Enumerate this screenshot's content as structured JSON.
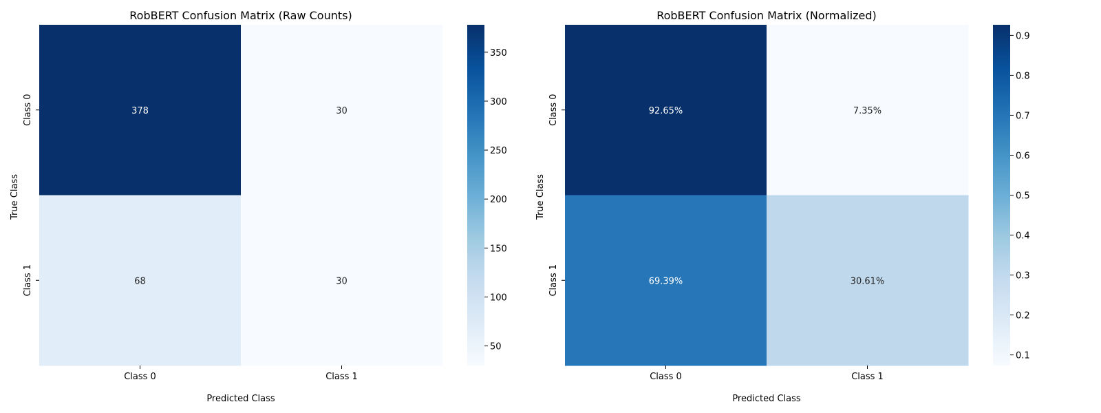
{
  "chart_data": [
    {
      "type": "heatmap",
      "title": "RobBERT Confusion Matrix (Raw Counts)",
      "xlabel": "Predicted Class",
      "ylabel": "True Class",
      "x_categories": [
        "Class 0",
        "Class 1"
      ],
      "y_categories": [
        "Class 0",
        "Class 1"
      ],
      "values": [
        [
          378,
          30
        ],
        [
          68,
          30
        ]
      ],
      "cell_labels": [
        [
          "378",
          "30"
        ],
        [
          "68",
          "30"
        ]
      ],
      "colormap": "Blues",
      "colorbar_range": [
        30,
        378
      ],
      "colorbar_ticks": [
        50,
        100,
        150,
        200,
        250,
        300,
        350
      ]
    },
    {
      "type": "heatmap",
      "title": "RobBERT Confusion Matrix (Normalized)",
      "xlabel": "Predicted Class",
      "ylabel": "True Class",
      "x_categories": [
        "Class 0",
        "Class 1"
      ],
      "y_categories": [
        "Class 0",
        "Class 1"
      ],
      "values": [
        [
          0.9265,
          0.0735
        ],
        [
          0.6939,
          0.3061
        ]
      ],
      "cell_labels": [
        [
          "92.65%",
          "7.35%"
        ],
        [
          "69.39%",
          "30.61%"
        ]
      ],
      "colormap": "Blues",
      "colorbar_range": [
        0.0735,
        0.9265
      ],
      "colorbar_ticks": [
        0.1,
        0.2,
        0.3,
        0.4,
        0.5,
        0.6,
        0.7,
        0.8,
        0.9
      ]
    }
  ]
}
